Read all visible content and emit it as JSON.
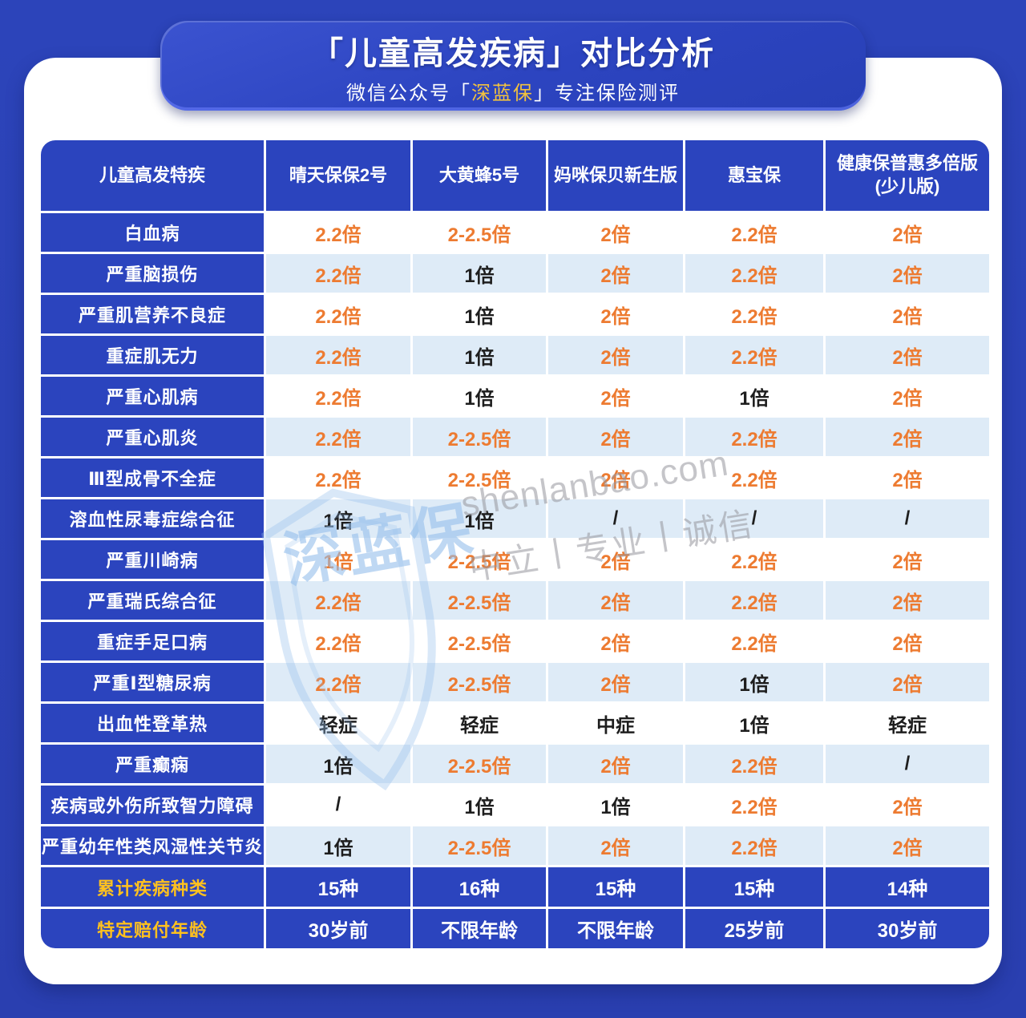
{
  "banner": {
    "title": "「儿童高发疾病」对比分析",
    "subtitle_prefix": "微信公众号「",
    "subtitle_brand": "深蓝保",
    "subtitle_suffix": "」专注保险测评"
  },
  "table": {
    "header": [
      "儿童高发特疾",
      "晴天保保2号",
      "大黄蜂5号",
      "妈咪保贝新生版",
      "惠宝保",
      "健康保普惠多倍版\n(少儿版)"
    ],
    "rows": [
      {
        "type": "disease",
        "label": "白血病",
        "cells": [
          {
            "t": "2.2倍",
            "hl": true
          },
          {
            "t": "2-2.5倍",
            "hl": true
          },
          {
            "t": "2倍",
            "hl": true
          },
          {
            "t": "2.2倍",
            "hl": true
          },
          {
            "t": "2倍",
            "hl": true
          }
        ]
      },
      {
        "type": "disease",
        "label": "严重脑损伤",
        "cells": [
          {
            "t": "2.2倍",
            "hl": true
          },
          {
            "t": "1倍",
            "hl": false
          },
          {
            "t": "2倍",
            "hl": true
          },
          {
            "t": "2.2倍",
            "hl": true
          },
          {
            "t": "2倍",
            "hl": true
          }
        ]
      },
      {
        "type": "disease",
        "label": "严重肌营养不良症",
        "cells": [
          {
            "t": "2.2倍",
            "hl": true
          },
          {
            "t": "1倍",
            "hl": false
          },
          {
            "t": "2倍",
            "hl": true
          },
          {
            "t": "2.2倍",
            "hl": true
          },
          {
            "t": "2倍",
            "hl": true
          }
        ]
      },
      {
        "type": "disease",
        "label": "重症肌无力",
        "cells": [
          {
            "t": "2.2倍",
            "hl": true
          },
          {
            "t": "1倍",
            "hl": false
          },
          {
            "t": "2倍",
            "hl": true
          },
          {
            "t": "2.2倍",
            "hl": true
          },
          {
            "t": "2倍",
            "hl": true
          }
        ]
      },
      {
        "type": "disease",
        "label": "严重心肌病",
        "cells": [
          {
            "t": "2.2倍",
            "hl": true
          },
          {
            "t": "1倍",
            "hl": false
          },
          {
            "t": "2倍",
            "hl": true
          },
          {
            "t": "1倍",
            "hl": false
          },
          {
            "t": "2倍",
            "hl": true
          }
        ]
      },
      {
        "type": "disease",
        "label": "严重心肌炎",
        "cells": [
          {
            "t": "2.2倍",
            "hl": true
          },
          {
            "t": "2-2.5倍",
            "hl": true
          },
          {
            "t": "2倍",
            "hl": true
          },
          {
            "t": "2.2倍",
            "hl": true
          },
          {
            "t": "2倍",
            "hl": true
          }
        ]
      },
      {
        "type": "disease",
        "label": "Ⅲ型成骨不全症",
        "cells": [
          {
            "t": "2.2倍",
            "hl": true
          },
          {
            "t": "2-2.5倍",
            "hl": true
          },
          {
            "t": "2倍",
            "hl": true
          },
          {
            "t": "2.2倍",
            "hl": true
          },
          {
            "t": "2倍",
            "hl": true
          }
        ]
      },
      {
        "type": "disease",
        "label": "溶血性尿毒症综合征",
        "cells": [
          {
            "t": "1倍",
            "hl": false
          },
          {
            "t": "1倍",
            "hl": false
          },
          {
            "t": "/",
            "hl": false
          },
          {
            "t": "/",
            "hl": false
          },
          {
            "t": "/",
            "hl": false
          }
        ]
      },
      {
        "type": "disease",
        "label": "严重川崎病",
        "cells": [
          {
            "t": "1倍",
            "hl": true
          },
          {
            "t": "2-2.5倍",
            "hl": true
          },
          {
            "t": "2倍",
            "hl": true
          },
          {
            "t": "2.2倍",
            "hl": true
          },
          {
            "t": "2倍",
            "hl": true
          }
        ]
      },
      {
        "type": "disease",
        "label": "严重瑞氏综合征",
        "cells": [
          {
            "t": "2.2倍",
            "hl": true
          },
          {
            "t": "2-2.5倍",
            "hl": true
          },
          {
            "t": "2倍",
            "hl": true
          },
          {
            "t": "2.2倍",
            "hl": true
          },
          {
            "t": "2倍",
            "hl": true
          }
        ]
      },
      {
        "type": "disease",
        "label": "重症手足口病",
        "cells": [
          {
            "t": "2.2倍",
            "hl": true
          },
          {
            "t": "2-2.5倍",
            "hl": true
          },
          {
            "t": "2倍",
            "hl": true
          },
          {
            "t": "2.2倍",
            "hl": true
          },
          {
            "t": "2倍",
            "hl": true
          }
        ]
      },
      {
        "type": "disease",
        "label": "严重Ⅰ型糖尿病",
        "cells": [
          {
            "t": "2.2倍",
            "hl": true
          },
          {
            "t": "2-2.5倍",
            "hl": true
          },
          {
            "t": "2倍",
            "hl": true
          },
          {
            "t": "1倍",
            "hl": false
          },
          {
            "t": "2倍",
            "hl": true
          }
        ]
      },
      {
        "type": "disease",
        "label": "出血性登革热",
        "cells": [
          {
            "t": "轻症",
            "hl": false
          },
          {
            "t": "轻症",
            "hl": false
          },
          {
            "t": "中症",
            "hl": false
          },
          {
            "t": "1倍",
            "hl": false
          },
          {
            "t": "轻症",
            "hl": false
          }
        ]
      },
      {
        "type": "disease",
        "label": "严重癫痫",
        "cells": [
          {
            "t": "1倍",
            "hl": false
          },
          {
            "t": "2-2.5倍",
            "hl": true
          },
          {
            "t": "2倍",
            "hl": true
          },
          {
            "t": "2.2倍",
            "hl": true
          },
          {
            "t": "/",
            "hl": false
          }
        ]
      },
      {
        "type": "disease",
        "label": "疾病或外伤所致智力障碍",
        "cells": [
          {
            "t": "/",
            "hl": false
          },
          {
            "t": "1倍",
            "hl": false
          },
          {
            "t": "1倍",
            "hl": false
          },
          {
            "t": "2.2倍",
            "hl": true
          },
          {
            "t": "2倍",
            "hl": true
          }
        ]
      },
      {
        "type": "disease",
        "label": "严重幼年性类风湿性关节炎",
        "cells": [
          {
            "t": "1倍",
            "hl": false
          },
          {
            "t": "2-2.5倍",
            "hl": true
          },
          {
            "t": "2倍",
            "hl": true
          },
          {
            "t": "2.2倍",
            "hl": true
          },
          {
            "t": "2倍",
            "hl": true
          }
        ]
      },
      {
        "type": "summary",
        "label": "累计疾病种类",
        "cells": [
          {
            "t": "15种",
            "hl": false
          },
          {
            "t": "16种",
            "hl": false
          },
          {
            "t": "15种",
            "hl": false
          },
          {
            "t": "15种",
            "hl": false
          },
          {
            "t": "14种",
            "hl": false
          }
        ]
      },
      {
        "type": "summary",
        "label": "特定赔付年龄",
        "cells": [
          {
            "t": "30岁前",
            "hl": false
          },
          {
            "t": "不限年龄",
            "hl": false
          },
          {
            "t": "不限年龄",
            "hl": false
          },
          {
            "t": "25岁前",
            "hl": false
          },
          {
            "t": "30岁前",
            "hl": false
          }
        ]
      }
    ]
  },
  "watermark": {
    "brand": "深蓝保",
    "domain": "shenlanbao.com",
    "slogan": "中立丨专业丨诚信"
  },
  "colors": {
    "page_background": "#2A40B4",
    "cell_blue": "#2B44BE",
    "row_tint": "#DEEBF7",
    "accent_orange": "#ED7B31",
    "summary_gold": "#FFC11E",
    "brand_gold": "#F2C23E"
  }
}
